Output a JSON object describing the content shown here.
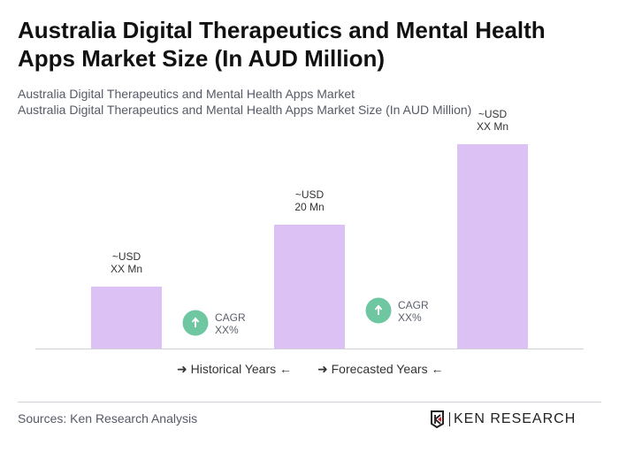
{
  "title": "Australia Digital Therapeutics and Mental Health Apps Market Size (In AUD Million)",
  "subtitle_lines": [
    "Australia Digital Therapeutics and Mental Health Apps Market",
    "Australia Digital Therapeutics and Mental Health Apps Market Size (In AUD Million)"
  ],
  "chart_data": {
    "type": "bar",
    "categories": [
      "",
      "",
      ""
    ],
    "values": [
      10,
      20,
      33
    ],
    "data_labels": [
      [
        "~USD",
        "XX Mn"
      ],
      [
        "~USD",
        "20 Mn"
      ],
      [
        "~USD",
        "XX Mn"
      ]
    ],
    "cagr_annotations": [
      [
        "CAGR",
        "XX%"
      ],
      [
        "CAGR",
        "XX%"
      ]
    ],
    "legend": [
      "Historical Years",
      "Forecasted Years"
    ],
    "grid": false,
    "bar_color": "#dcc1f5",
    "cagr_icon_color": "#6fc7a2"
  },
  "footer": {
    "source": "Sources: Ken Research Analysis",
    "logo": "KEN RESEARCH"
  }
}
